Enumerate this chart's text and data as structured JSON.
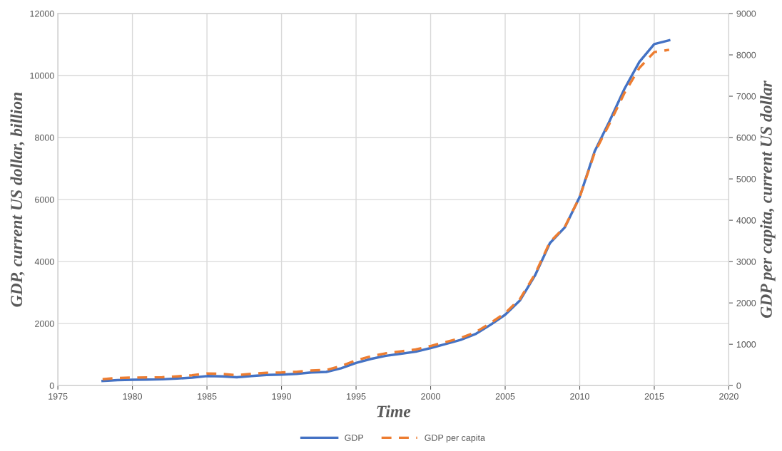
{
  "chart_data": {
    "type": "line",
    "xlabel": "Time",
    "ylabel": "GDP, current US dollar, billion",
    "y2label": "GDP per capita, current US dollar",
    "x": [
      1978,
      1979,
      1980,
      1981,
      1982,
      1983,
      1984,
      1985,
      1986,
      1987,
      1988,
      1989,
      1990,
      1991,
      1992,
      1993,
      1994,
      1995,
      1996,
      1997,
      1998,
      1999,
      2000,
      2001,
      2002,
      2003,
      2004,
      2005,
      2006,
      2007,
      2008,
      2009,
      2010,
      2011,
      2012,
      2013,
      2014,
      2015,
      2016
    ],
    "series": [
      {
        "name": "GDP",
        "color": "#4472c4",
        "line_style": "solid",
        "values": [
          150,
          176,
          189,
          194,
          203,
          228,
          257,
          307,
          298,
          270,
          309,
          343,
          357,
          379,
          423,
          441,
          559,
          732,
          861,
          961,
          1029,
          1094,
          1211,
          1339,
          1471,
          1660,
          1955,
          2286,
          2752,
          3550,
          4594,
          5102,
          6087,
          7552,
          8532,
          9570,
          10439,
          11016,
          11138
        ]
      },
      {
        "name": "GDP per capita",
        "color": "#ed7d31",
        "line_style": "dashed",
        "axis": "y2",
        "values": [
          156,
          184,
          195,
          197,
          203,
          225,
          251,
          294,
          282,
          252,
          284,
          311,
          318,
          333,
          366,
          377,
          473,
          610,
          709,
          782,
          829,
          873,
          959,
          1053,
          1149,
          1289,
          1509,
          1753,
          2099,
          2695,
          3471,
          3838,
          4561,
          5634,
          6338,
          7078,
          7684,
          8067,
          8123
        ]
      }
    ],
    "xlim": [
      1975,
      2020
    ],
    "xticks": [
      1975,
      1980,
      1985,
      1990,
      1995,
      2000,
      2005,
      2010,
      2015,
      2020
    ],
    "ylim": [
      0,
      12000
    ],
    "yticks": [
      0,
      2000,
      4000,
      6000,
      8000,
      10000,
      12000
    ],
    "y2lim": [
      0,
      9000
    ],
    "y2ticks": [
      0,
      1000,
      2000,
      3000,
      4000,
      5000,
      6000,
      7000,
      8000,
      9000
    ],
    "grid": true,
    "legend": "bottom",
    "marker": "none"
  }
}
